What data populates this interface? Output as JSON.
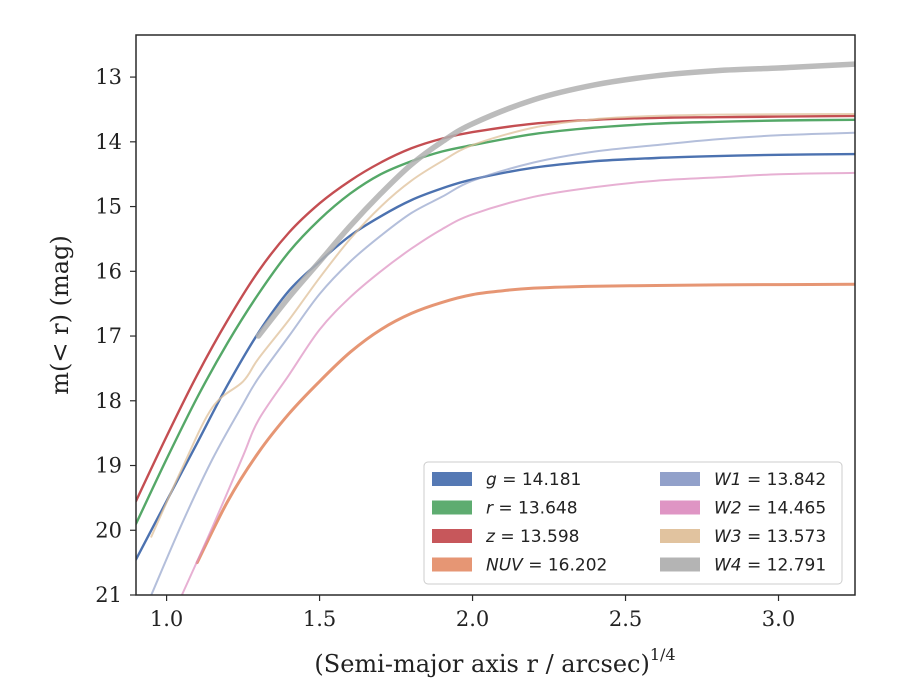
{
  "chart_data": {
    "type": "line",
    "xlabel": "(Semi-major axis r / arcsec)",
    "xlabel_exponent": "1/4",
    "ylabel": "m(< r) (mag)",
    "xlim": [
      0.9,
      3.25
    ],
    "ylim": [
      21,
      12.35
    ],
    "y_inverted": true,
    "grid": false,
    "legend_placement": "lower-right",
    "x_ticks": [
      {
        "value": 1.0,
        "label": "1.0"
      },
      {
        "value": 1.5,
        "label": "1.5"
      },
      {
        "value": 2.0,
        "label": "2.0"
      },
      {
        "value": 2.5,
        "label": "2.5"
      },
      {
        "value": 3.0,
        "label": "3.0"
      }
    ],
    "y_ticks": [
      {
        "value": 13,
        "label": "13"
      },
      {
        "value": 14,
        "label": "14"
      },
      {
        "value": 15,
        "label": "15"
      },
      {
        "value": 16,
        "label": "16"
      },
      {
        "value": 17,
        "label": "17"
      },
      {
        "value": 18,
        "label": "18"
      },
      {
        "value": 19,
        "label": "19"
      },
      {
        "value": 20,
        "label": "20"
      },
      {
        "value": 21,
        "label": "21"
      }
    ],
    "series": [
      {
        "band": "g",
        "total": "14.181",
        "color": "#4c72b0",
        "x": [
          0.9,
          1.0,
          1.1,
          1.2,
          1.3,
          1.4,
          1.5,
          1.6,
          1.7,
          1.8,
          1.9,
          2.0,
          2.2,
          2.4,
          2.6,
          2.8,
          3.0,
          3.25
        ],
        "y": [
          20.45,
          19.55,
          18.65,
          17.75,
          16.95,
          16.3,
          15.85,
          15.45,
          15.15,
          14.9,
          14.72,
          14.58,
          14.4,
          14.3,
          14.25,
          14.22,
          14.2,
          14.19
        ]
      },
      {
        "band": "r",
        "total": "13.648",
        "color": "#55a868",
        "x": [
          0.9,
          1.0,
          1.1,
          1.2,
          1.3,
          1.4,
          1.5,
          1.6,
          1.7,
          1.8,
          1.9,
          2.0,
          2.2,
          2.4,
          2.6,
          2.8,
          3.0,
          3.25
        ],
        "y": [
          19.9,
          18.9,
          17.95,
          17.1,
          16.35,
          15.7,
          15.2,
          14.8,
          14.5,
          14.3,
          14.15,
          14.05,
          13.88,
          13.78,
          13.72,
          13.69,
          13.67,
          13.66
        ]
      },
      {
        "band": "z",
        "total": "13.598",
        "color": "#c44e52",
        "x": [
          0.9,
          1.0,
          1.1,
          1.2,
          1.3,
          1.4,
          1.5,
          1.6,
          1.7,
          1.8,
          1.9,
          2.0,
          2.2,
          2.4,
          2.6,
          2.8,
          3.0,
          3.25
        ],
        "y": [
          19.55,
          18.55,
          17.6,
          16.75,
          16.0,
          15.4,
          14.95,
          14.6,
          14.32,
          14.1,
          13.95,
          13.85,
          13.72,
          13.66,
          13.63,
          13.62,
          13.61,
          13.6
        ]
      },
      {
        "band": "NUV",
        "total": "16.202",
        "color": "#e5906d",
        "x": [
          1.1,
          1.2,
          1.3,
          1.4,
          1.5,
          1.6,
          1.7,
          1.8,
          1.9,
          2.0,
          2.1,
          2.2,
          2.4,
          2.6,
          2.8,
          3.0,
          3.25
        ],
        "y": [
          20.5,
          19.55,
          18.8,
          18.2,
          17.7,
          17.25,
          16.9,
          16.65,
          16.48,
          16.36,
          16.3,
          16.26,
          16.23,
          16.22,
          16.21,
          16.205,
          16.2
        ]
      },
      {
        "band": "W1",
        "total": "13.842",
        "color": "#8c9cc7",
        "x": [
          0.95,
          1.05,
          1.15,
          1.25,
          1.3,
          1.4,
          1.5,
          1.6,
          1.7,
          1.8,
          1.9,
          2.0,
          2.2,
          2.4,
          2.6,
          2.8,
          3.0,
          3.25
        ],
        "y": [
          21.0,
          19.9,
          18.9,
          18.05,
          17.65,
          17.0,
          16.35,
          15.85,
          15.45,
          15.1,
          14.85,
          14.6,
          14.32,
          14.15,
          14.05,
          13.96,
          13.9,
          13.86
        ]
      },
      {
        "band": "W2",
        "total": "14.465",
        "color": "#dd8fc1",
        "x": [
          1.05,
          1.15,
          1.25,
          1.3,
          1.4,
          1.5,
          1.6,
          1.7,
          1.8,
          1.9,
          2.0,
          2.2,
          2.4,
          2.6,
          2.8,
          3.0,
          3.25
        ],
        "y": [
          21.0,
          19.95,
          18.85,
          18.3,
          17.6,
          16.9,
          16.4,
          16.0,
          15.65,
          15.35,
          15.12,
          14.85,
          14.7,
          14.6,
          14.55,
          14.5,
          14.48
        ]
      },
      {
        "band": "W3",
        "total": "13.573",
        "color": "#dfc09a",
        "x": [
          0.95,
          1.05,
          1.15,
          1.25,
          1.3,
          1.4,
          1.5,
          1.6,
          1.7,
          1.8,
          1.9,
          2.0,
          2.2,
          2.4,
          2.6,
          2.8,
          3.0,
          3.25
        ],
        "y": [
          20.1,
          19.05,
          18.1,
          17.7,
          17.35,
          16.75,
          16.1,
          15.5,
          15.0,
          14.6,
          14.3,
          14.05,
          13.78,
          13.65,
          13.6,
          13.58,
          13.575,
          13.57
        ]
      },
      {
        "band": "W4",
        "total": "12.791",
        "color": "#b0b0b0",
        "x": [
          1.3,
          1.4,
          1.5,
          1.6,
          1.7,
          1.8,
          1.9,
          2.0,
          2.2,
          2.4,
          2.6,
          2.8,
          3.0,
          3.08,
          3.25
        ],
        "y": [
          17.0,
          16.4,
          15.85,
          15.3,
          14.8,
          14.35,
          14.0,
          13.72,
          13.35,
          13.12,
          12.98,
          12.9,
          12.86,
          12.84,
          12.8
        ]
      }
    ]
  }
}
